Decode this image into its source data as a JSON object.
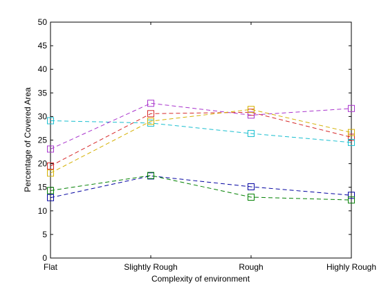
{
  "chart_data": {
    "type": "line",
    "xlabel": "Complexity of environment",
    "ylabel": "Percentage of Covered Area",
    "categories": [
      "Flat",
      "Slightly Rough",
      "Rough",
      "Highly Rough"
    ],
    "ylim": [
      0,
      50
    ],
    "yticks": [
      0,
      5,
      10,
      15,
      20,
      25,
      30,
      35,
      40,
      45,
      50
    ],
    "grid": false,
    "legend": "none",
    "line_style": "dashed",
    "marker": "square",
    "series": [
      {
        "color": "#0000a0",
        "values": [
          12.8,
          17.4,
          15.1,
          13.3
        ]
      },
      {
        "color": "#008000",
        "values": [
          14.3,
          17.5,
          12.9,
          12.3
        ]
      },
      {
        "color": "#d62728",
        "values": [
          19.5,
          30.6,
          30.9,
          25.6
        ]
      },
      {
        "color": "#17becf",
        "values": [
          29.1,
          28.6,
          26.4,
          24.5
        ]
      },
      {
        "color": "#a832cc",
        "values": [
          23.1,
          32.8,
          30.3,
          31.7
        ]
      },
      {
        "color": "#d4b000",
        "values": [
          18.0,
          29.0,
          31.5,
          26.6
        ]
      }
    ]
  }
}
